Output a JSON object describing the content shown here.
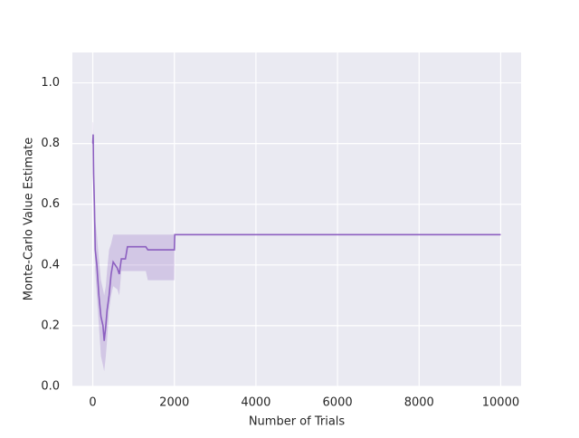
{
  "chart_data": {
    "type": "line",
    "xlabel": "Number of Trials",
    "ylabel": "Monte-Carlo Value Estimate",
    "x": [
      0,
      10,
      20,
      40,
      60,
      100,
      150,
      200,
      250,
      280,
      320,
      350,
      400,
      450,
      500,
      600,
      650,
      700,
      800,
      850,
      1300,
      1350,
      2000,
      2010,
      10000
    ],
    "series": [
      {
        "color": "#8c5fc0",
        "values": [
          0.8,
          0.83,
          0.7,
          0.6,
          0.45,
          0.4,
          0.3,
          0.23,
          0.2,
          0.15,
          0.2,
          0.25,
          0.3,
          0.37,
          0.41,
          0.39,
          0.37,
          0.42,
          0.42,
          0.46,
          0.46,
          0.45,
          0.45,
          0.5,
          0.5
        ],
        "lower": [
          0.7,
          0.75,
          0.6,
          0.5,
          0.38,
          0.3,
          0.2,
          0.1,
          0.07,
          0.05,
          0.1,
          0.15,
          0.25,
          0.3,
          0.33,
          0.32,
          0.3,
          0.38,
          0.38,
          0.38,
          0.38,
          0.35,
          0.35,
          0.5,
          0.5
        ],
        "upper": [
          0.87,
          0.87,
          0.8,
          0.7,
          0.55,
          0.5,
          0.42,
          0.35,
          0.32,
          0.3,
          0.33,
          0.38,
          0.45,
          0.47,
          0.5,
          0.5,
          0.5,
          0.5,
          0.5,
          0.5,
          0.5,
          0.5,
          0.5,
          0.5,
          0.5
        ]
      }
    ],
    "xlim": [
      -500,
      10500
    ],
    "ylim": [
      0,
      1.1
    ],
    "xticks": [
      0,
      2000,
      4000,
      6000,
      8000,
      10000
    ],
    "yticks": [
      {
        "value": 0,
        "label": "0.0"
      },
      0.2,
      0.4,
      0.6,
      0.8,
      {
        "value": 1,
        "label": "1.0"
      }
    ],
    "grid": true
  }
}
